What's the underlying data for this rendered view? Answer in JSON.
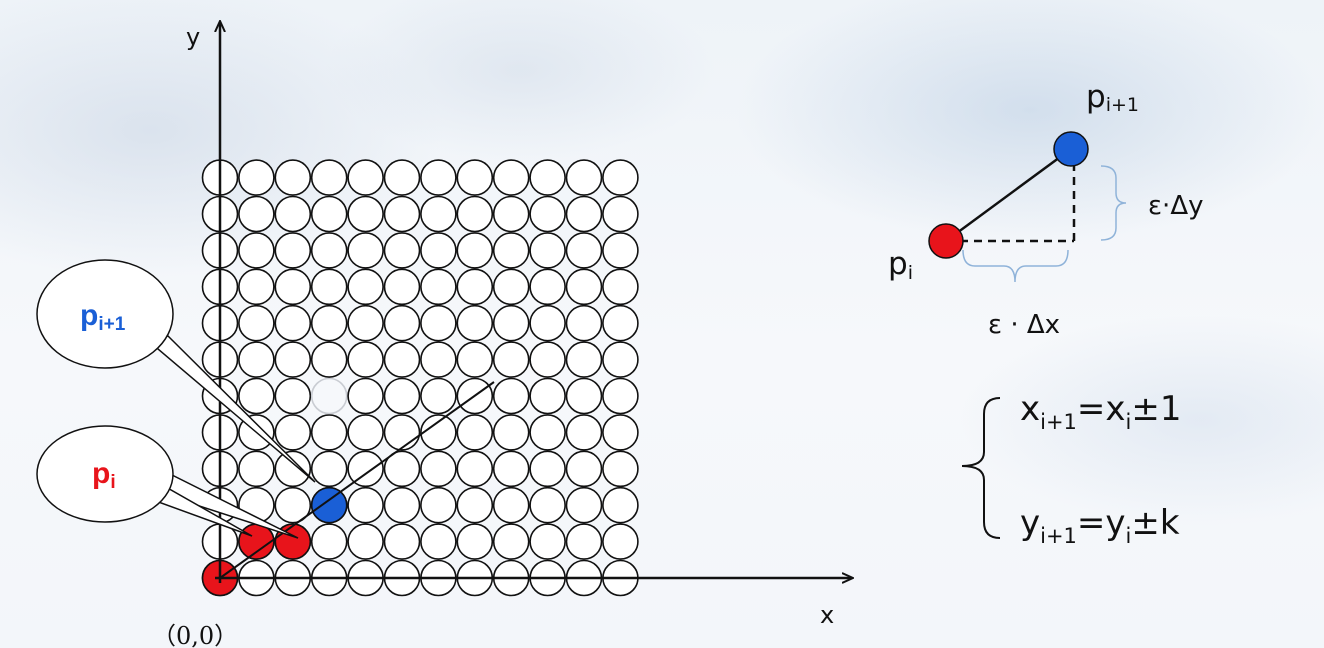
{
  "axes": {
    "x_label": "x",
    "y_label": "y",
    "origin_label": "（0,0）"
  },
  "grid": {
    "columns": 12,
    "rows": 12,
    "hollow_points": [
      [
        3,
        5
      ]
    ]
  },
  "highlight_points": [
    {
      "name": "origin-point",
      "col": 0,
      "row": 0,
      "color": "#e8141b"
    },
    {
      "name": "p-i-point-a",
      "col": 1,
      "row": 1,
      "color": "#e8141b"
    },
    {
      "name": "p-i-point-b",
      "col": 2,
      "row": 1,
      "color": "#e8141b"
    },
    {
      "name": "p-i-plus-1-point",
      "col": 3,
      "row": 2,
      "color": "#1a5fd6"
    }
  ],
  "callouts": {
    "p_i_plus_1": {
      "base": "p",
      "sub": "i+1",
      "color": "#1a5fd6"
    },
    "p_i": {
      "base": "p",
      "sub": "i",
      "color": "#e8141b"
    }
  },
  "inset": {
    "p_i_plus_1": {
      "base": "p",
      "sub": "i+1"
    },
    "p_i": {
      "base": "p",
      "sub": "i"
    },
    "dy_label": "ε·Δy",
    "dx_label": "ε · Δx",
    "p_i_color": "#e8141b",
    "p_i_plus_1_color": "#1a5fd6",
    "brace_color": "#8fb3d9"
  },
  "equations": {
    "line1": {
      "lhs": "x",
      "lhs_sub": "i+1",
      "eq": "=x",
      "rhs_sub": "i",
      "tail": "±1"
    },
    "line2": {
      "lhs": "y",
      "lhs_sub": "i+1",
      "eq": "=y",
      "rhs_sub": "i",
      "tail": "±k"
    }
  }
}
